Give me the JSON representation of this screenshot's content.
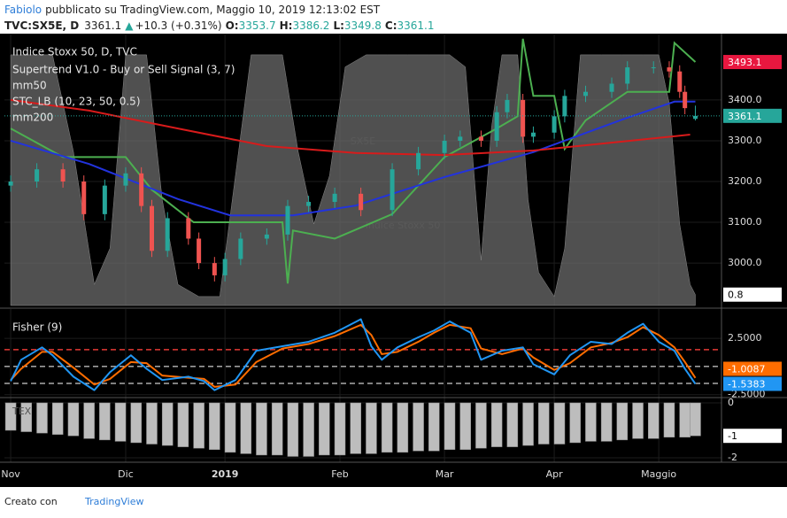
{
  "header": {
    "author": "Fabiolo",
    "published": "pubblicato su TradingView.com, Maggio 10, 2019 12:13:02 EST",
    "symbol": "TVC:SX5E, D",
    "change": "+10.3 (+0.31%)",
    "o": "O:",
    "h": "H:",
    "l": "L:",
    "c": "C:"
  },
  "footer": {
    "text": "Creato con",
    "brand": "TradingView"
  },
  "chart_data": [
    {
      "type": "candlestick",
      "title": "Indice Stoxx 50, D, TVC",
      "watermark": "SX5E",
      "watermark_subtitle": "Indice Stoxx 50",
      "x": [
        0,
        5,
        10,
        14,
        18,
        22,
        25,
        27,
        30,
        34,
        36,
        39,
        41,
        44,
        49,
        53,
        57,
        62,
        67,
        73,
        78,
        83,
        86,
        90,
        93,
        95,
        98,
        100,
        104,
        106,
        110,
        115,
        118,
        123,
        126,
        128,
        129,
        131
      ],
      "open": [
        3190,
        3200,
        3230,
        3200,
        3120,
        3190,
        3220,
        3140,
        3030,
        3110,
        3060,
        3000,
        2970,
        3010,
        3060,
        3070,
        3140,
        3150,
        3170,
        3130,
        3230,
        3270,
        3300,
        3310,
        3300,
        3370,
        3400,
        3310,
        3320,
        3360,
        3410,
        3420,
        3440,
        3480,
        3480,
        3470,
        3420,
        3353.7
      ],
      "high": [
        3215,
        3245,
        3245,
        3215,
        3205,
        3235,
        3235,
        3155,
        3125,
        3125,
        3075,
        3015,
        3025,
        3075,
        3085,
        3155,
        3165,
        3185,
        3185,
        3245,
        3285,
        3315,
        3325,
        3325,
        3385,
        3415,
        3415,
        3335,
        3375,
        3425,
        3435,
        3455,
        3495,
        3495,
        3495,
        3485,
        3435,
        3386.2
      ],
      "low": [
        3175,
        3185,
        3185,
        3105,
        3105,
        3175,
        3125,
        3015,
        3015,
        3045,
        2985,
        2955,
        2955,
        2995,
        3045,
        3055,
        3125,
        3135,
        3115,
        3115,
        3215,
        3255,
        3285,
        3285,
        3285,
        3355,
        3295,
        3295,
        3305,
        3345,
        3395,
        3405,
        3425,
        3465,
        3455,
        3405,
        3365,
        3349.8
      ],
      "close": [
        3200,
        3230,
        3200,
        3120,
        3190,
        3220,
        3140,
        3030,
        3110,
        3060,
        3000,
        2970,
        3010,
        3060,
        3070,
        3140,
        3150,
        3170,
        3130,
        3230,
        3270,
        3300,
        3310,
        3300,
        3370,
        3400,
        3310,
        3320,
        3360,
        3410,
        3420,
        3440,
        3480,
        3480,
        3470,
        3420,
        3380,
        3361.1
      ],
      "up_color": "#26a69a",
      "down_color": "#ef5350",
      "xlim": [
        -1.2,
        136
      ],
      "xticks": [
        {
          "value": 0,
          "label": "Nov"
        },
        {
          "value": 22,
          "label": "Dic"
        },
        {
          "value": 41,
          "label": "2019"
        },
        {
          "value": 63,
          "label": "Feb"
        },
        {
          "value": 83,
          "label": "Mar"
        },
        {
          "value": 104,
          "label": "Apr"
        },
        {
          "value": 124,
          "label": "Maggio"
        }
      ],
      "ylim": [
        2896,
        3554
      ],
      "yticks": [
        {
          "value": 3000,
          "label": "3000.0"
        },
        {
          "value": 3100,
          "label": "3100.0"
        },
        {
          "value": 3200,
          "label": "3200.0"
        },
        {
          "value": 3300,
          "label": "3300.0"
        },
        {
          "value": 3400,
          "label": "3400.0"
        }
      ],
      "y2lim": [
        -3.7,
        107.3
      ],
      "series": [
        {
          "name": "Supertrend V1.0 - Buy or Sell Signal (3, 7)",
          "color": "#4caf50",
          "x": [
            0,
            10,
            22,
            27,
            35,
            45,
            52,
            53,
            54,
            62,
            73,
            83,
            93,
            97,
            98,
            100,
            104,
            106,
            110,
            118,
            126,
            127,
            131
          ],
          "values": [
            3330,
            3260,
            3260,
            3180,
            3100,
            3100,
            3100,
            2950,
            3080,
            3060,
            3120,
            3260,
            3330,
            3360,
            3550,
            3410,
            3410,
            3280,
            3350,
            3420,
            3420,
            3540,
            3493.1
          ]
        },
        {
          "name": "mm50",
          "color": "#2233dd",
          "x": [
            0,
            15,
            32,
            42,
            54,
            66,
            83,
            100,
            117,
            127,
            131
          ],
          "values": [
            3300,
            3243,
            3157,
            3117,
            3117,
            3141,
            3211,
            3272,
            3352,
            3396,
            3396
          ]
        },
        {
          "name": "STC_LB (10, 23, 50, 0.5)",
          "color": "#6b6b6b",
          "axis": "y2",
          "x": [
            0,
            4,
            8,
            12,
            16,
            19,
            22,
            26,
            29,
            32,
            36,
            40,
            43,
            46,
            52,
            55,
            58,
            61,
            64,
            68,
            72,
            76,
            80,
            84,
            87,
            90,
            92,
            94,
            97,
            99,
            101,
            104,
            106,
            109,
            113,
            117,
            121,
            124,
            126,
            128,
            130,
            131
          ],
          "values": [
            100,
            100,
            100,
            60,
            5,
            20,
            100,
            100,
            40,
            5,
            0,
            0,
            50,
            100,
            100,
            60,
            30,
            50,
            95,
            100,
            100,
            100,
            100,
            100,
            95,
            15,
            70,
            100,
            100,
            40,
            10,
            0,
            20,
            100,
            100,
            100,
            100,
            100,
            80,
            30,
            5,
            0.8
          ]
        },
        {
          "name": "mm200",
          "color": "#d81b1b",
          "x": [
            0,
            15,
            32,
            49,
            66,
            83,
            100,
            117,
            130
          ],
          "values": [
            3400,
            3374,
            3330,
            3287,
            3270,
            3265,
            3276,
            3298,
            3315
          ]
        }
      ]
    },
    {
      "type": "line",
      "title": "Fisher (9)",
      "x": [
        0,
        2,
        6,
        8,
        12,
        16,
        19,
        23,
        26,
        29,
        34,
        37,
        39,
        43,
        47,
        52,
        57,
        62,
        67,
        69,
        71,
        74,
        78,
        81,
        84,
        88,
        90,
        94,
        98,
        100,
        104,
        107,
        111,
        115,
        118,
        121,
        124,
        127,
        129,
        131
      ],
      "xlim": [
        -1.2,
        136
      ],
      "ylim": [
        -2.6,
        4.87
      ],
      "yticks": [
        {
          "value": 2.5,
          "label": "2.5000"
        },
        {
          "value": -2.5,
          "label": "-2.5000"
        }
      ],
      "levels": [
        {
          "value": 1.5,
          "color": "#e53935"
        },
        {
          "value": 0,
          "color": "#ffffff"
        },
        {
          "value": -1.5,
          "color": "#ffffff"
        }
      ],
      "series": [
        {
          "color": "#ff6d00",
          "values": [
            -1.2,
            -0.2,
            1.3,
            1.3,
            -0.1,
            -1.6,
            -1.1,
            0.4,
            0.3,
            -0.8,
            -1.0,
            -1.1,
            -1.8,
            -1.6,
            0.4,
            1.6,
            2.0,
            2.7,
            3.7,
            2.8,
            1.1,
            1.3,
            2.2,
            3.0,
            3.7,
            3.4,
            1.6,
            1.1,
            1.6,
            0.8,
            -0.3,
            0.3,
            1.7,
            2.1,
            2.6,
            3.5,
            2.8,
            1.7,
            0.4,
            -1.0087
          ]
        },
        {
          "color": "#2196f3",
          "values": [
            -1.3,
            0.6,
            1.7,
            1.0,
            -0.9,
            -2.1,
            -0.5,
            1.0,
            -0.2,
            -1.2,
            -0.9,
            -1.3,
            -2.1,
            -1.2,
            1.4,
            1.8,
            2.2,
            3.0,
            4.2,
            1.8,
            0.6,
            1.7,
            2.6,
            3.2,
            4.0,
            3.0,
            0.6,
            1.4,
            1.7,
            0.2,
            -0.7,
            1.0,
            2.2,
            2.0,
            3.0,
            3.8,
            2.2,
            1.4,
            -0.2,
            -1.5383
          ]
        }
      ]
    },
    {
      "type": "bar",
      "title": "TEX",
      "color": "#bdbdbd",
      "x": [
        0,
        3,
        6,
        9,
        12,
        15,
        18,
        21,
        24,
        27,
        30,
        33,
        36,
        39,
        42,
        45,
        48,
        51,
        54,
        57,
        60,
        63,
        66,
        69,
        72,
        75,
        78,
        81,
        84,
        87,
        90,
        93,
        96,
        99,
        102,
        105,
        108,
        111,
        114,
        117,
        120,
        123,
        126,
        129,
        131
      ],
      "values": [
        -1.0,
        -1.05,
        -1.1,
        -1.15,
        -1.2,
        -1.3,
        -1.35,
        -1.4,
        -1.45,
        -1.5,
        -1.55,
        -1.6,
        -1.65,
        -1.7,
        -1.8,
        -1.85,
        -1.9,
        -1.9,
        -1.95,
        -1.95,
        -1.9,
        -1.9,
        -1.85,
        -1.85,
        -1.8,
        -1.8,
        -1.75,
        -1.75,
        -1.7,
        -1.7,
        -1.65,
        -1.6,
        -1.6,
        -1.55,
        -1.5,
        -1.5,
        -1.45,
        -1.4,
        -1.4,
        -1.35,
        -1.3,
        -1.3,
        -1.25,
        -1.25,
        -1.2
      ],
      "value_labels": [
        null,
        null,
        null,
        null,
        null,
        null,
        null,
        null,
        null,
        null,
        null,
        null,
        null,
        null,
        null,
        null,
        null,
        null,
        null,
        null,
        null,
        null,
        null,
        null,
        null,
        null,
        null,
        null,
        null,
        null,
        null,
        null,
        null,
        null,
        null,
        null,
        null,
        null,
        null,
        null,
        null,
        null,
        null,
        null,
        "-1"
      ],
      "xlim": [
        -1.2,
        136
      ],
      "ylim": [
        -2.16,
        0.16
      ],
      "yticks": [
        0,
        -2
      ]
    }
  ]
}
